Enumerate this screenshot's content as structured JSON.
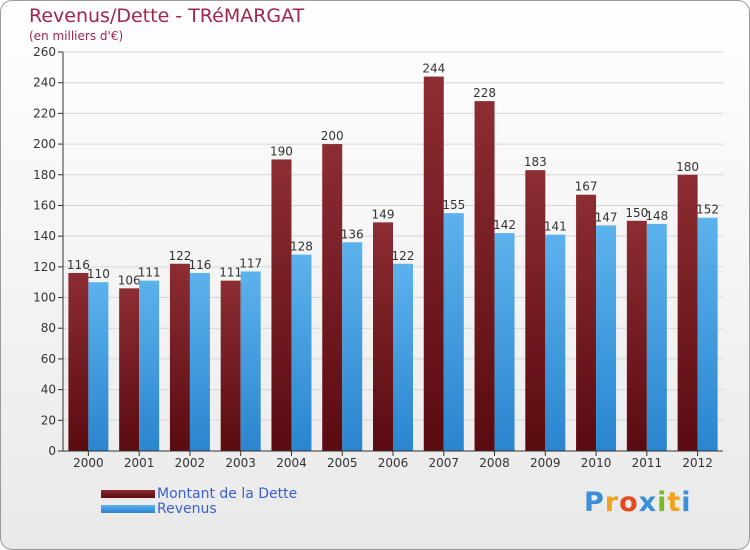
{
  "title": "Revenus/Dette - TRéMARGAT",
  "subtitle": "(en milliers d'€)",
  "logo": {
    "text": "Proxiti",
    "letter_colors": [
      "#3b8ed8",
      "#f0a21b",
      "#e64a1a",
      "#3b8ed8",
      "#79b829",
      "#f0a21b",
      "#3b8ed8"
    ]
  },
  "colors": {
    "dette_top": "#8c2d33",
    "dette_bottom": "#5a0b10",
    "revenus_top": "#5cb2ec",
    "revenus_bottom": "#2a85cf",
    "axis": "#333333",
    "grid": "#d6d6d6"
  },
  "chart_data": {
    "type": "bar",
    "categories": [
      "2000",
      "2001",
      "2002",
      "2003",
      "2004",
      "2005",
      "2006",
      "2007",
      "2008",
      "2009",
      "2010",
      "2011",
      "2012"
    ],
    "series": [
      {
        "name": "Montant de la Dette",
        "values": [
          116,
          106,
          122,
          111,
          190,
          200,
          149,
          244,
          228,
          183,
          167,
          150,
          180
        ]
      },
      {
        "name": "Revenus",
        "values": [
          110,
          111,
          116,
          117,
          128,
          136,
          122,
          155,
          142,
          141,
          147,
          148,
          152
        ]
      }
    ],
    "ylim": [
      0,
      260
    ],
    "yticks": [
      0,
      20,
      40,
      60,
      80,
      100,
      120,
      140,
      160,
      180,
      200,
      220,
      240,
      260
    ],
    "grid": true,
    "legend": "bottom-left"
  }
}
